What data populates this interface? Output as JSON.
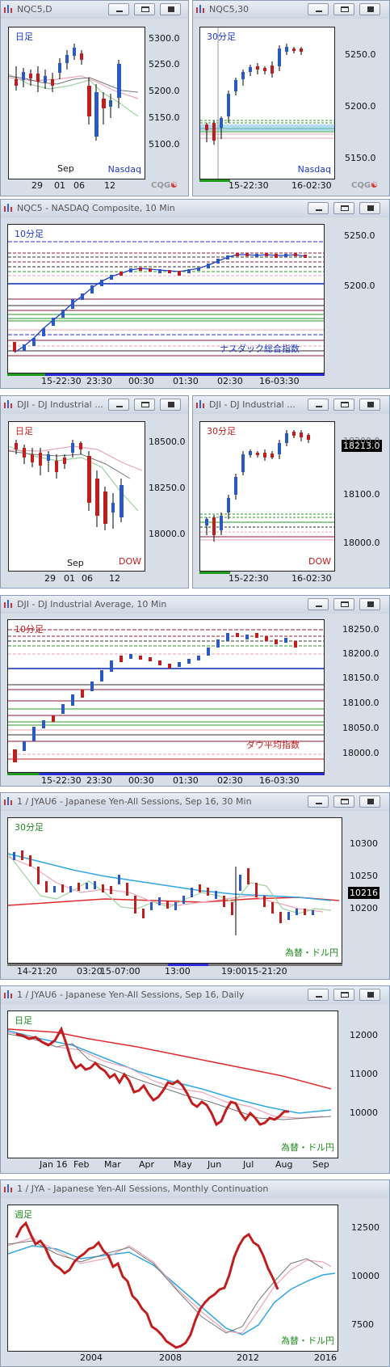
{
  "colors": {
    "up": "#2b59c3",
    "down": "#c21d1d",
    "blue_line": "#2fa7e6",
    "red_line": "#e22a2a",
    "pink_line": "#e9a5b8",
    "green_line": "#9ed19e"
  },
  "icons": [
    "chart-icon",
    "minimize-icon",
    "restore-icon",
    "close-icon",
    "cqg-logo"
  ],
  "logo": {
    "text": "CQG",
    "mark": "☯"
  },
  "windows": [
    {
      "title": "NQC5,D",
      "timeframe": "日足",
      "series_label": "Nasdaq",
      "y_ticks": [
        "5300.0",
        "5250.0",
        "5200.0",
        "5150.0",
        "5100.0"
      ],
      "x_ticks": [
        "29",
        "01",
        "06",
        "12"
      ],
      "x_sub": "Sep"
    },
    {
      "title": "NQC5,30",
      "timeframe": "30分足",
      "series_label": "Nasdaq",
      "y_ticks": [
        "5250.0",
        "5200.0",
        "5150.0"
      ],
      "x_ticks": [
        "15-22:30",
        "16-02:30"
      ]
    },
    {
      "title": "NQC5 - NASDAQ Composite, 10 Min",
      "timeframe": "10分足",
      "series_label": "ナスダック総合指数",
      "y_ticks": [
        "5250.0",
        "5200.0"
      ],
      "x_ticks": [
        "15-22:30",
        "23:30",
        "00:30",
        "01:30",
        "02:30",
        "16-03:30"
      ]
    },
    {
      "title": "DJI - DJ Industrial ...",
      "timeframe": "日足",
      "series_label": "DOW",
      "y_ticks": [
        "18500.0",
        "18250.0",
        "18000.0"
      ],
      "x_ticks": [
        "29",
        "01",
        "06",
        "12"
      ],
      "x_sub": "Sep"
    },
    {
      "title": "DJI - DJ Industrial ...",
      "timeframe": "30分足",
      "series_label": "DOW",
      "price_box": "18213.0",
      "y_ticks": [
        "18200.0",
        "18100.0",
        "18000.0"
      ],
      "x_ticks": [
        "15-22:30",
        "16-02:30"
      ]
    },
    {
      "title": "DJI - DJ Industrial Average, 10 Min",
      "timeframe": "10分足",
      "series_label": "ダウ平均指数",
      "y_ticks": [
        "18250.0",
        "18200.0",
        "18150.0",
        "18100.0",
        "18050.0",
        "18000.0"
      ],
      "x_ticks": [
        "15-22:30",
        "23:30",
        "00:30",
        "01:30",
        "02:30",
        "16-03:30"
      ]
    },
    {
      "title": "1 / JYAU6 - Japanese Yen-All Sessions, Sep 16, 30 Min",
      "timeframe": "30分足",
      "series_label": "為替・ドル円",
      "price_box": "10216",
      "y_ticks": [
        "10300",
        "10250",
        "10200"
      ],
      "x_ticks": [
        "14-21:20",
        "03:20",
        "15-07:00",
        "13:00",
        "19:00",
        "15-21:20"
      ]
    },
    {
      "title": "1 / JYAU6 - Japanese Yen-All Sessions, Sep 16, Daily",
      "timeframe": "日足",
      "series_label": "為替・ドル円",
      "y_ticks": [
        "12000",
        "11000",
        "10000"
      ],
      "x_ticks": [
        "Jan 16",
        "Feb",
        "Mar",
        "Apr",
        "May",
        "Jun",
        "Jul",
        "Aug",
        "Sep"
      ]
    },
    {
      "title": "1 / JYA - Japanese Yen-All Sessions, Monthly Continuation",
      "timeframe": "週足",
      "series_label": "為替・ドル円",
      "y_ticks": [
        "12500",
        "10000",
        "7500"
      ],
      "x_ticks": [
        "2004",
        "2008",
        "2012",
        "2016"
      ]
    }
  ]
}
